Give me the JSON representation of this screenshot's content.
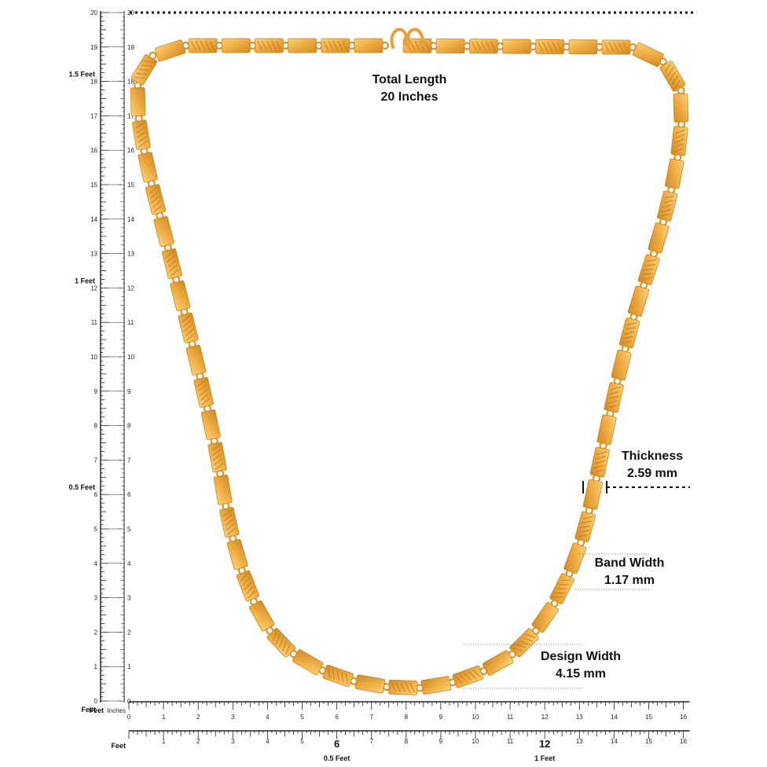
{
  "colors": {
    "gold_light": "#f7c25a",
    "gold_mid": "#e9a53a",
    "gold_dark": "#c98422",
    "ruler": "#222222"
  },
  "labels": {
    "total_length_line1": "Total Length",
    "total_length_line2": "20 Inches",
    "thickness_line1": "Thickness",
    "thickness_line2": "2.59 mm",
    "band_width_line1": "Band Width",
    "band_width_line2": "1.17 mm",
    "design_width_line1": "Design Width",
    "design_width_line2": "4.15 mm"
  },
  "vertical_ruler": {
    "unit": "Inches",
    "min": 0,
    "max": 20,
    "numbers": [
      "0",
      "1",
      "2",
      "3",
      "4",
      "5",
      "6",
      "7",
      "8",
      "9",
      "10",
      "11",
      "12",
      "13",
      "14",
      "15",
      "16",
      "17",
      "18",
      "19",
      "20"
    ],
    "feet_marks": [
      {
        "inches": 6,
        "label": "0.5 Feet"
      },
      {
        "inches": 12,
        "label": "1 Feet"
      },
      {
        "inches": 18,
        "label": "1.5 Feet"
      }
    ],
    "feet_unit_label": "Feet"
  },
  "horizontal_ruler": {
    "unit_label": "Inches",
    "feet_unit_label": "Feet",
    "min": 0,
    "max": 16,
    "numbers": [
      "0",
      "1",
      "2",
      "3",
      "4",
      "5",
      "6",
      "7",
      "8",
      "9",
      "10",
      "11",
      "12",
      "13",
      "14",
      "15",
      "16"
    ],
    "lower_numbers": [
      "1",
      "2",
      "3",
      "4",
      "5",
      "6",
      "7",
      "8",
      "9",
      "10",
      "11",
      "12",
      "13",
      "14",
      "15",
      "16"
    ],
    "lower_unit_label": "Feet",
    "feet_marks": [
      {
        "inches": 6,
        "label": "0.5 Feet"
      },
      {
        "inches": 12,
        "label": "1 Feet"
      }
    ]
  }
}
